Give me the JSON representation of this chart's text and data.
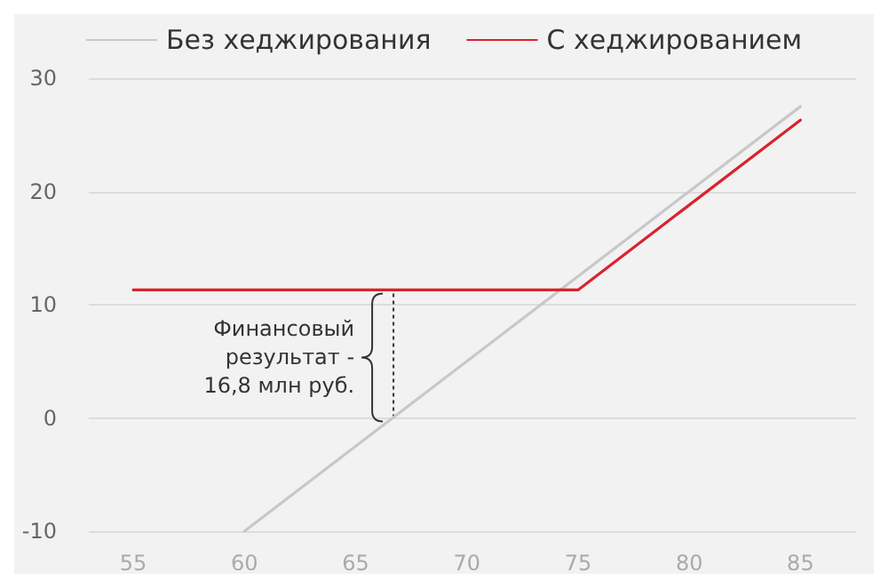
{
  "chart_data": {
    "type": "line",
    "xlim": [
      53,
      87.5
    ],
    "xticks": [
      55,
      60,
      65,
      70,
      75,
      80,
      85
    ],
    "ylim": [
      -10,
      30
    ],
    "yticks": [
      -10,
      0,
      10,
      20,
      30
    ],
    "grid": "y",
    "legend": "top",
    "marker": "none",
    "line_style": "solid",
    "series": [
      {
        "name": "Без хеджирования",
        "color": "#c8c8c8",
        "x": [
          60,
          85
        ],
        "values": [
          -10,
          27.5
        ]
      },
      {
        "name": "С хеджированием",
        "color": "#d9232e",
        "x": [
          55,
          75,
          85
        ],
        "values": [
          11.3,
          11.3,
          26.3
        ]
      }
    ],
    "annotations": [
      {
        "text": "Финансовый\nрезультат -\n16,8 млн руб.",
        "x": 66.7,
        "y": 11.3
      }
    ]
  }
}
